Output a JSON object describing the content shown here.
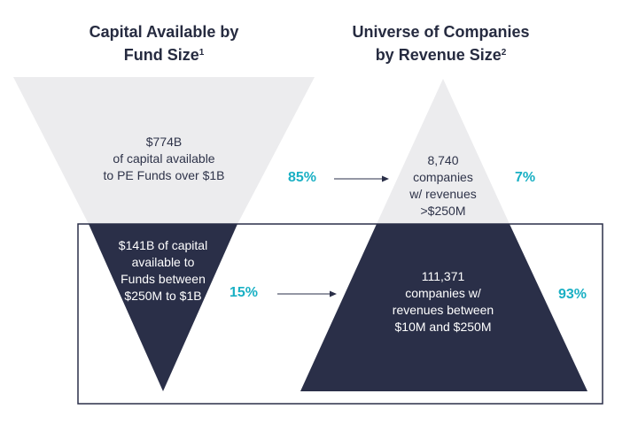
{
  "headings": {
    "left": {
      "text": "Capital Available by",
      "text2": "Fund Size",
      "sup": "1"
    },
    "right": {
      "text": "Universe of Companies",
      "text2": "by Revenue Size",
      "sup": "2"
    }
  },
  "funnel": {
    "top": {
      "lines": [
        "$774B",
        "of capital available",
        "to PE Funds over $1B"
      ],
      "pct": "85%",
      "pct_value": 85
    },
    "bottom": {
      "lines": [
        "$141B of capital",
        "available to",
        "Funds  between",
        "$250M to $1B"
      ],
      "pct": "15%",
      "pct_value": 15
    }
  },
  "pyramid": {
    "top": {
      "lines": [
        "8,740",
        "companies",
        "w/ revenues",
        ">$250M"
      ],
      "pct": "7%",
      "pct_value": 7
    },
    "bottom": {
      "lines": [
        "111,371",
        "companies w/",
        "revenues between",
        "$10M and $250M"
      ],
      "pct": "93%",
      "pct_value": 93
    }
  },
  "colors": {
    "light_shape": "#ececee",
    "dark_shape": "#2a2f48",
    "accent": "#1ab0c4",
    "frame": "#2a2f48"
  }
}
